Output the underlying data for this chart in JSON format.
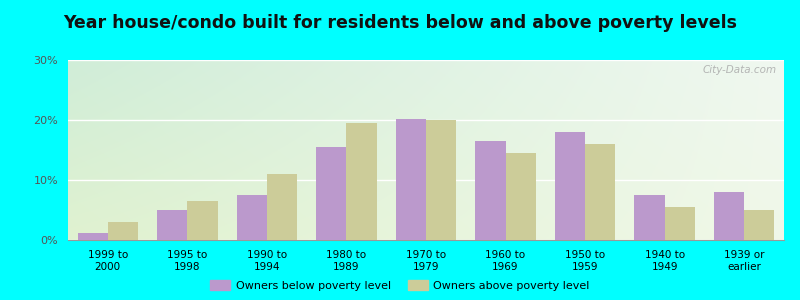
{
  "title": "Year house/condo built for residents below and above poverty levels",
  "categories": [
    "1999 to\n2000",
    "1995 to\n1998",
    "1990 to\n1994",
    "1980 to\n1989",
    "1970 to\n1979",
    "1960 to\n1969",
    "1950 to\n1959",
    "1940 to\n1949",
    "1939 or\nearly"
  ],
  "below_poverty": [
    1.2,
    5.0,
    7.5,
    15.5,
    20.2,
    16.5,
    18.0,
    7.5,
    8.0
  ],
  "above_poverty": [
    3.0,
    6.5,
    11.0,
    19.5,
    20.0,
    14.5,
    16.0,
    5.5,
    5.0
  ],
  "below_color": "#bb99cc",
  "above_color": "#cccc99",
  "ylim": [
    0,
    30
  ],
  "yticks": [
    0,
    10,
    20,
    30
  ],
  "ytick_labels": [
    "0%",
    "10%",
    "20%",
    "30%"
  ],
  "outer_background": "#00ffff",
  "title_fontsize": 12.5,
  "legend_below": "Owners below poverty level",
  "legend_above": "Owners above poverty level",
  "watermark": "City-Data.com",
  "bg_top_left": "#d8f0e0",
  "bg_top_right": "#f0f8f0",
  "bg_bottom": "#e8f5d8"
}
